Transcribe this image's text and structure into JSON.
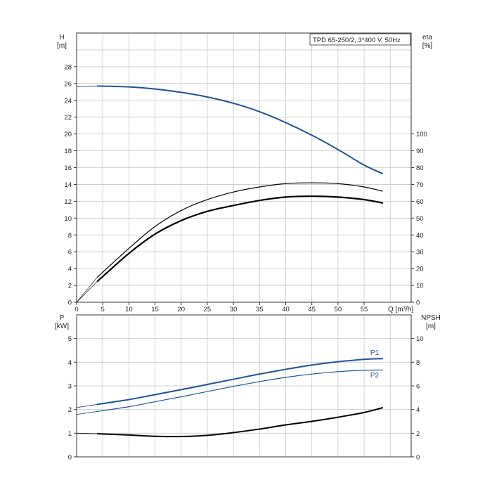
{
  "title": "TPD 65-250/2, 3*400 V, 50Hz",
  "chart_data": [
    {
      "id": "head_efficiency",
      "type": "line",
      "x_label": "Q [m³/h]",
      "x_ticks": [
        0,
        5,
        10,
        15,
        20,
        25,
        30,
        35,
        40,
        45,
        50,
        55
      ],
      "xlim": [
        0,
        64
      ],
      "left_axis": {
        "label_line1": "H",
        "label_line2": "[m]",
        "ylim": [
          0,
          32
        ],
        "ticks": [
          0,
          2,
          4,
          6,
          8,
          10,
          12,
          14,
          16,
          18,
          20,
          22,
          24,
          26,
          28
        ]
      },
      "right_axis": {
        "label_line1": "eta",
        "label_line2": "[%]",
        "ylim": [
          0,
          160
        ],
        "ticks": [
          0,
          10,
          20,
          30,
          40,
          50,
          60,
          70,
          80,
          90,
          100
        ]
      },
      "series": [
        {
          "name": "H",
          "axis": "left",
          "color": "#1f5394",
          "stroke_width": 2,
          "x": [
            4,
            10,
            15,
            20,
            25,
            30,
            35,
            40,
            45,
            50,
            55,
            58.5
          ],
          "y": [
            25.7,
            25.6,
            25.35,
            24.95,
            24.4,
            23.65,
            22.65,
            21.35,
            19.85,
            18.15,
            16.3,
            15.3
          ]
        },
        {
          "name": "H-ext",
          "axis": "left",
          "color": "#1f5394",
          "stroke_width": 0.9,
          "x": [
            0,
            4
          ],
          "y": [
            25.6,
            25.7
          ]
        },
        {
          "name": "eta-outer",
          "axis": "right",
          "color": "#000000",
          "stroke_width": 1.2,
          "x": [
            4,
            10,
            15,
            20,
            25,
            30,
            35,
            40,
            45,
            50,
            55,
            58.5
          ],
          "y": [
            15,
            32,
            45,
            54.5,
            61,
            65.5,
            68.5,
            70.5,
            71,
            70.5,
            68.5,
            66
          ]
        },
        {
          "name": "eta-inner",
          "axis": "right",
          "color": "#000000",
          "stroke_width": 2.2,
          "x": [
            4,
            10,
            15,
            20,
            25,
            30,
            35,
            40,
            45,
            50,
            55,
            58.5
          ],
          "y": [
            12.5,
            29,
            40.5,
            48.5,
            54,
            57.5,
            60.5,
            62.5,
            63,
            62.5,
            61,
            59
          ]
        },
        {
          "name": "eta-ext-outer",
          "axis": "right",
          "color": "#000000",
          "stroke_width": 0.6,
          "x": [
            0,
            4
          ],
          "y": [
            0,
            15
          ]
        },
        {
          "name": "eta-ext-inner",
          "axis": "right",
          "color": "#000000",
          "stroke_width": 0.6,
          "x": [
            0,
            4
          ],
          "y": [
            0,
            12.5
          ]
        }
      ]
    },
    {
      "id": "power_npsh",
      "type": "line",
      "xlim": [
        0,
        64
      ],
      "left_axis": {
        "label_line1": "P",
        "label_line2": "[kW]",
        "ylim": [
          0,
          6
        ],
        "ticks": [
          0,
          1,
          2,
          3,
          4,
          5
        ]
      },
      "right_axis": {
        "label_line1": "NPSH",
        "label_line2": "[m]",
        "ylim": [
          0,
          12
        ],
        "ticks": [
          0,
          2,
          4,
          6,
          8,
          10
        ]
      },
      "series": [
        {
          "name": "P1",
          "axis": "left",
          "color": "#1f5394",
          "stroke_width": 2,
          "label": "P1",
          "x": [
            4,
            10,
            15,
            20,
            25,
            30,
            35,
            40,
            45,
            50,
            55,
            58.5
          ],
          "y": [
            2.22,
            2.42,
            2.63,
            2.84,
            3.06,
            3.28,
            3.5,
            3.7,
            3.88,
            4.02,
            4.12,
            4.15
          ]
        },
        {
          "name": "P1-ext",
          "axis": "left",
          "color": "#1f5394",
          "stroke_width": 0.9,
          "x": [
            0,
            4
          ],
          "y": [
            2.08,
            2.22
          ]
        },
        {
          "name": "P2",
          "axis": "left",
          "color": "#1f5394",
          "stroke_width": 1.2,
          "label": "P2",
          "x": [
            4,
            10,
            15,
            20,
            25,
            30,
            35,
            40,
            45,
            50,
            55,
            58.5
          ],
          "y": [
            1.92,
            2.12,
            2.33,
            2.54,
            2.76,
            2.98,
            3.18,
            3.36,
            3.5,
            3.6,
            3.66,
            3.67
          ]
        },
        {
          "name": "P2-ext",
          "axis": "left",
          "color": "#1f5394",
          "stroke_width": 0.9,
          "x": [
            0,
            4
          ],
          "y": [
            1.79,
            1.92
          ]
        },
        {
          "name": "NPSH",
          "axis": "right",
          "color": "#000000",
          "stroke_width": 2,
          "x": [
            4,
            10,
            15,
            20,
            25,
            30,
            35,
            40,
            45,
            50,
            55,
            58.5
          ],
          "y": [
            1.95,
            1.85,
            1.74,
            1.72,
            1.82,
            2.05,
            2.35,
            2.7,
            3.0,
            3.35,
            3.75,
            4.15
          ]
        },
        {
          "name": "NPSH-ext",
          "axis": "right",
          "color": "#000000",
          "stroke_width": 0.9,
          "x": [
            0,
            4
          ],
          "y": [
            2.0,
            1.95
          ]
        }
      ]
    }
  ]
}
